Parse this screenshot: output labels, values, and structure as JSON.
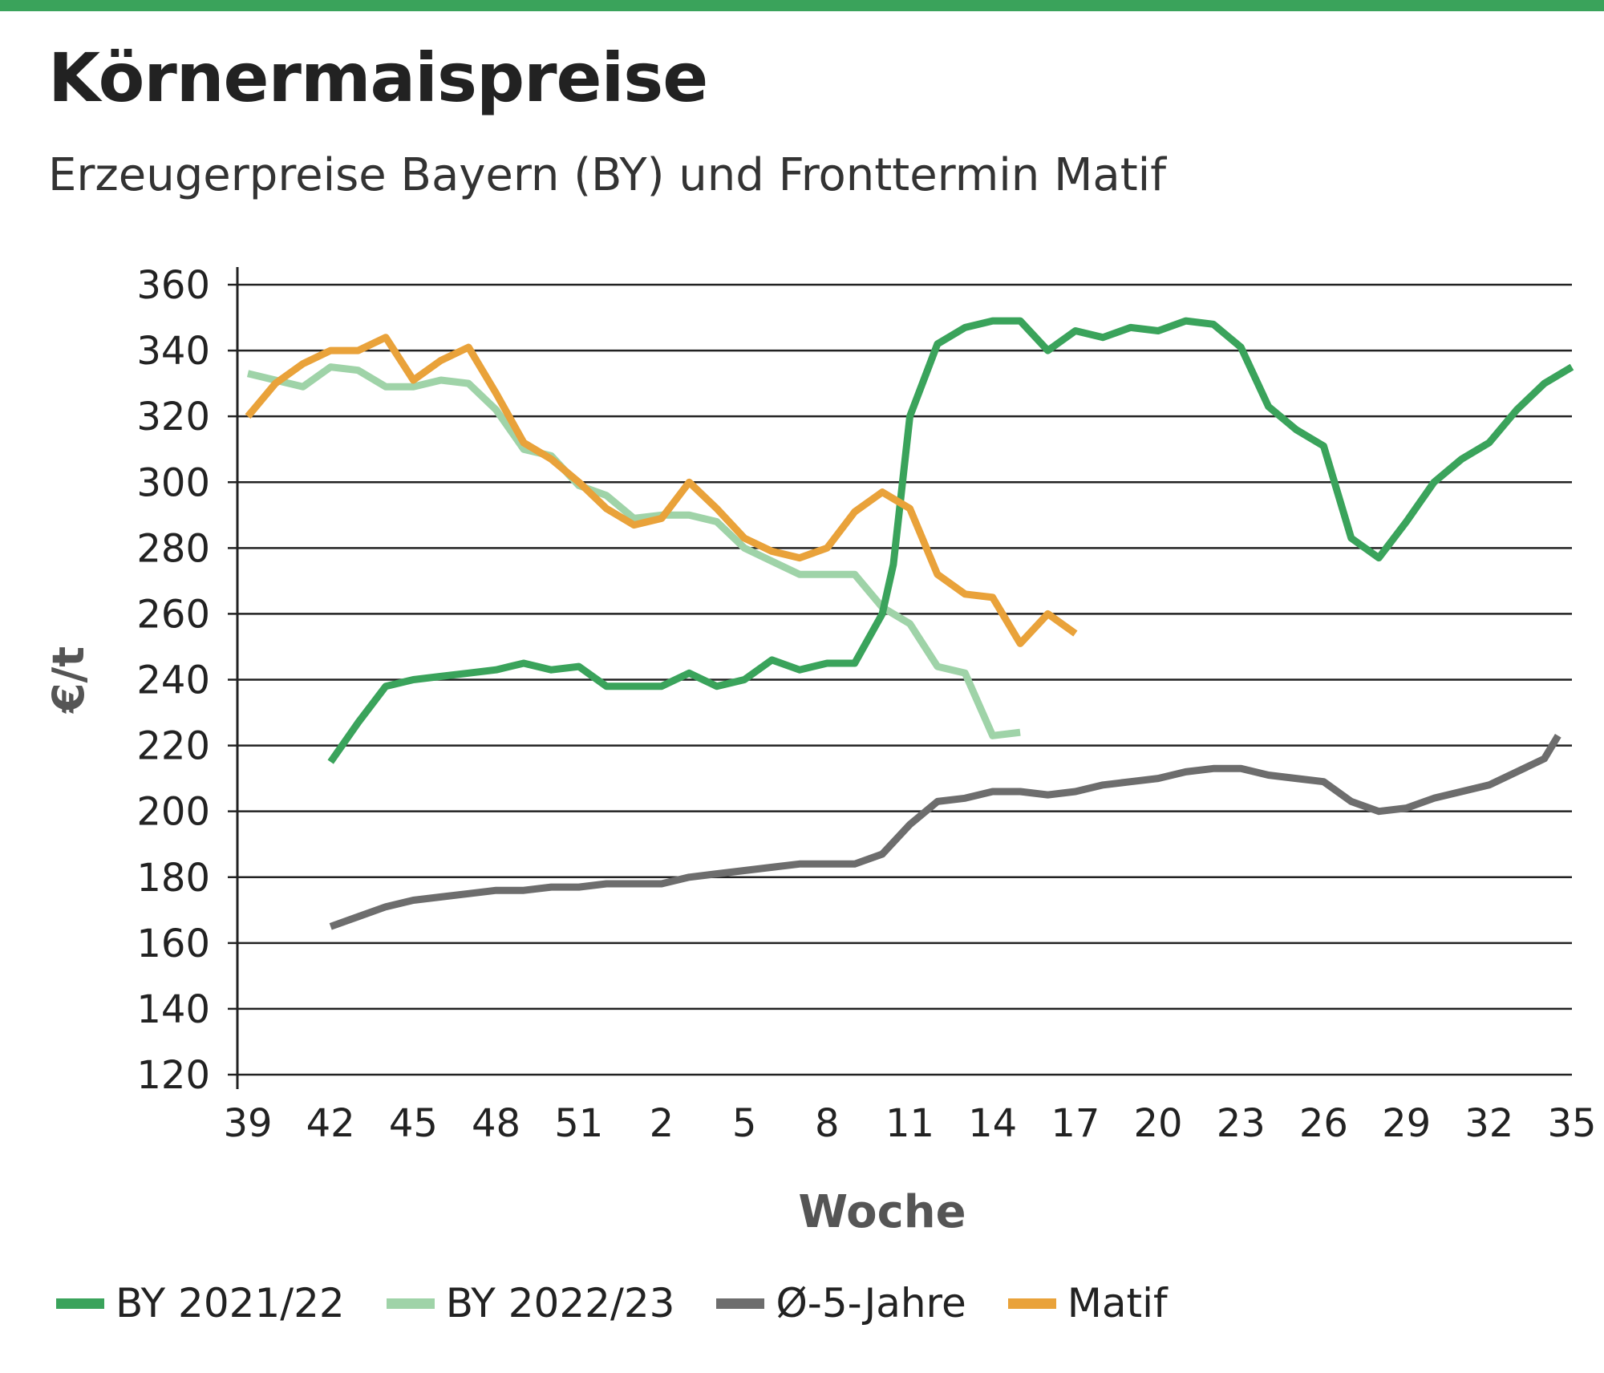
{
  "colors": {
    "accent": "#3aa35b",
    "by2122": "#3aa35b",
    "by2223": "#9fd3a8",
    "avg5": "#6d6d6d",
    "matif": "#e9a23a"
  },
  "chart_data": {
    "type": "line",
    "title": "Körnermaispreise",
    "subtitle": "Erzeugerpreise Bayern (BY) und Fronttermin Matif",
    "xlabel": "Woche",
    "ylabel": "€/t",
    "ylim": [
      120,
      360
    ],
    "yticks": [
      120,
      140,
      160,
      180,
      200,
      220,
      240,
      260,
      280,
      300,
      320,
      340,
      360
    ],
    "xticks": [
      "39",
      "42",
      "45",
      "48",
      "51",
      "2",
      "5",
      "8",
      "11",
      "14",
      "17",
      "20",
      "23",
      "26",
      "29",
      "32",
      "35"
    ],
    "x_index_range": [
      0,
      48
    ],
    "grid": true,
    "legend_position": "bottom",
    "series": [
      {
        "name": "BY 2021/22",
        "color": "#3aa35b",
        "width": 9,
        "points": [
          [
            3,
            215
          ],
          [
            4,
            227
          ],
          [
            5,
            238
          ],
          [
            6,
            240
          ],
          [
            7,
            241
          ],
          [
            8,
            242
          ],
          [
            9,
            243
          ],
          [
            10,
            245
          ],
          [
            11,
            243
          ],
          [
            12,
            244
          ],
          [
            13,
            238
          ],
          [
            14,
            238
          ],
          [
            15,
            238
          ],
          [
            16,
            242
          ],
          [
            17,
            238
          ],
          [
            18,
            240
          ],
          [
            19,
            246
          ],
          [
            20,
            243
          ],
          [
            21,
            245
          ],
          [
            22,
            245
          ],
          [
            23,
            260
          ],
          [
            23.4,
            275
          ],
          [
            24,
            320
          ],
          [
            25,
            342
          ],
          [
            26,
            347
          ],
          [
            27,
            349
          ],
          [
            28,
            349
          ],
          [
            29,
            340
          ],
          [
            30,
            346
          ],
          [
            31,
            344
          ],
          [
            32,
            347
          ],
          [
            33,
            346
          ],
          [
            34,
            349
          ],
          [
            35,
            348
          ],
          [
            36,
            341
          ],
          [
            37,
            323
          ],
          [
            38,
            316
          ],
          [
            39,
            311
          ],
          [
            40,
            283
          ],
          [
            41,
            277
          ],
          [
            42,
            288
          ],
          [
            43,
            300
          ],
          [
            44,
            307
          ],
          [
            45,
            312
          ],
          [
            46,
            322
          ],
          [
            47,
            330
          ],
          [
            48,
            335
          ]
        ]
      },
      {
        "name": "BY 2022/23",
        "color": "#9fd3a8",
        "width": 9,
        "points": [
          [
            0,
            333
          ],
          [
            1,
            331
          ],
          [
            2,
            329
          ],
          [
            3,
            335
          ],
          [
            4,
            334
          ],
          [
            5,
            329
          ],
          [
            6,
            329
          ],
          [
            7,
            331
          ],
          [
            8,
            330
          ],
          [
            9,
            322
          ],
          [
            10,
            310
          ],
          [
            11,
            308
          ],
          [
            12,
            299
          ],
          [
            13,
            296
          ],
          [
            14,
            289
          ],
          [
            15,
            290
          ],
          [
            16,
            290
          ],
          [
            17,
            288
          ],
          [
            18,
            280
          ],
          [
            19,
            276
          ],
          [
            20,
            272
          ],
          [
            21,
            272
          ],
          [
            22,
            272
          ],
          [
            23,
            262
          ],
          [
            24,
            257
          ],
          [
            25,
            244
          ],
          [
            26,
            242
          ],
          [
            27,
            223
          ],
          [
            28,
            224
          ]
        ]
      },
      {
        "name": "Ø-5-Jahre",
        "color": "#6d6d6d",
        "width": 9,
        "points": [
          [
            3,
            165
          ],
          [
            4,
            168
          ],
          [
            5,
            171
          ],
          [
            6,
            173
          ],
          [
            7,
            174
          ],
          [
            8,
            175
          ],
          [
            9,
            176
          ],
          [
            10,
            176
          ],
          [
            11,
            177
          ],
          [
            12,
            177
          ],
          [
            13,
            178
          ],
          [
            14,
            178
          ],
          [
            15,
            178
          ],
          [
            16,
            180
          ],
          [
            17,
            181
          ],
          [
            18,
            182
          ],
          [
            19,
            183
          ],
          [
            20,
            184
          ],
          [
            21,
            184
          ],
          [
            22,
            184
          ],
          [
            23,
            187
          ],
          [
            24,
            196
          ],
          [
            25,
            203
          ],
          [
            26,
            204
          ],
          [
            27,
            206
          ],
          [
            28,
            206
          ],
          [
            29,
            205
          ],
          [
            30,
            206
          ],
          [
            31,
            208
          ],
          [
            32,
            209
          ],
          [
            33,
            210
          ],
          [
            34,
            212
          ],
          [
            35,
            213
          ],
          [
            36,
            213
          ],
          [
            37,
            211
          ],
          [
            38,
            210
          ],
          [
            39,
            209
          ],
          [
            40,
            203
          ],
          [
            41,
            200
          ],
          [
            42,
            201
          ],
          [
            43,
            204
          ],
          [
            44,
            206
          ],
          [
            45,
            208
          ],
          [
            46,
            212
          ],
          [
            47,
            216
          ],
          [
            47.5,
            223
          ]
        ]
      },
      {
        "name": "Matif",
        "color": "#e9a23a",
        "width": 9,
        "points": [
          [
            0,
            320
          ],
          [
            1,
            330
          ],
          [
            2,
            336
          ],
          [
            3,
            340
          ],
          [
            4,
            340
          ],
          [
            5,
            344
          ],
          [
            6,
            331
          ],
          [
            7,
            337
          ],
          [
            8,
            341
          ],
          [
            9,
            327
          ],
          [
            10,
            312
          ],
          [
            11,
            307
          ],
          [
            12,
            300
          ],
          [
            13,
            292
          ],
          [
            14,
            287
          ],
          [
            15,
            289
          ],
          [
            16,
            300
          ],
          [
            17,
            292
          ],
          [
            18,
            283
          ],
          [
            19,
            279
          ],
          [
            20,
            277
          ],
          [
            21,
            280
          ],
          [
            22,
            291
          ],
          [
            23,
            297
          ],
          [
            24,
            292
          ],
          [
            25,
            272
          ],
          [
            26,
            266
          ],
          [
            27,
            265
          ],
          [
            28,
            251
          ],
          [
            29,
            260
          ],
          [
            30,
            254
          ]
        ]
      }
    ]
  }
}
